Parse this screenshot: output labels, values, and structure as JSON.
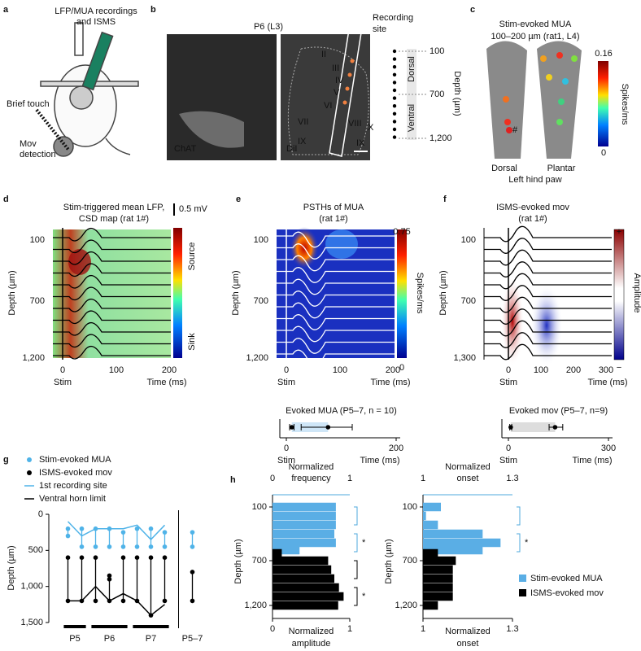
{
  "panels": {
    "a": {
      "letter": "a",
      "title": [
        "LFP/MUA recordings",
        "and ISMS"
      ],
      "touch": "Brief touch",
      "mov": [
        "Mov",
        "detection"
      ]
    },
    "b": {
      "letter": "b",
      "title": "P6 (L3)",
      "site": [
        "Recording",
        "site"
      ],
      "stain1": "ChAT",
      "stain2": "DiI",
      "laminae": [
        "II",
        "III",
        "IV",
        "V",
        "VI",
        "VII",
        "VIII",
        "IX",
        "X",
        "IX"
      ],
      "depth_ticks": [
        "100",
        "700",
        "1,200"
      ],
      "dorsal": "Dorsal",
      "ventral": "Ventral",
      "depth_label": "Depth (µm)"
    },
    "c": {
      "letter": "c",
      "title": "Stim-evoked MUA",
      "subtitle": "100–200 µm (rat1, L4)",
      "scale_max": "0.16",
      "scale_min": "0",
      "scale_label": "Spikes/ms",
      "mark": "#",
      "view1": "Dorsal",
      "view2": "Plantar",
      "caption": "Left hind paw"
    },
    "d": {
      "letter": "d",
      "title": [
        "Stim-triggered mean LFP,",
        "CSD map (rat 1#)"
      ],
      "scale_bar": "0.5 mV",
      "top": "Source",
      "bottom": "Sink",
      "ylabel": "Depth (µm)",
      "yticks": [
        "100",
        "700",
        "1,200"
      ],
      "xticks": [
        "0",
        "100",
        "200"
      ],
      "stim": "Stim",
      "xlabel": "Time (ms)"
    },
    "e": {
      "letter": "e",
      "title": [
        "PSTHs of MUA",
        "(rat 1#)"
      ],
      "scale_max": "0.75",
      "scale_min": "0",
      "scale_label": "Spikes/ms",
      "ylabel": "Depth (µm)",
      "yticks": [
        "100",
        "700",
        "1,200"
      ],
      "xticks": [
        "0",
        "100",
        "200"
      ],
      "stim": "Stim",
      "xlabel": "Time (ms)",
      "summary": {
        "title": "Evoked MUA (P5–7, n = 10)",
        "xlim": [
          0,
          200
        ],
        "xticks": [
          0,
          200
        ],
        "onset": 10,
        "onset_range": [
          6,
          14
        ],
        "peak": 76,
        "peak_range": [
          27,
          120
        ],
        "stim": "Stim",
        "xlabel": "Time (ms)"
      }
    },
    "f": {
      "letter": "f",
      "title": [
        "ISMS-evoked  mov",
        "(rat 1#)"
      ],
      "scale_max": "+",
      "scale_min": "−",
      "scale_label": "Amplitude",
      "ylabel": "Depth (µm)",
      "yticks": [
        "100",
        "700",
        "1,300"
      ],
      "xticks": [
        "0",
        "100",
        "200",
        "300"
      ],
      "stim": "Stim",
      "xlabel": "Time (ms)",
      "summary": {
        "title": "Evoked  mov  (P5–7, n=9)",
        "xlim": [
          0,
          300
        ],
        "xticks": [
          0,
          300
        ],
        "onset": 7,
        "onset_range": [
          4,
          10
        ],
        "peak": 140,
        "peak_range": [
          122,
          163
        ],
        "stim": "Stim",
        "xlabel": "Time (ms)"
      }
    },
    "g": {
      "letter": "g"
    },
    "h": {
      "letter": "h"
    }
  },
  "chart_data": [
    {
      "type": "scatter",
      "ylabel": "Depth (µm)",
      "ylim": [
        0,
        1500
      ],
      "yticks": [
        0,
        500,
        {
          "value": 1000,
          "label": "1,000"
        },
        {
          "value": 1500,
          "label": "1,500"
        }
      ],
      "xlim": [
        0.5,
        10.5
      ],
      "xticks": [
        {
          "value": 1.5,
          "label": "P5"
        },
        {
          "value": 4,
          "label": "P6"
        },
        {
          "value": 7,
          "label": "P7"
        },
        {
          "value": 10,
          "label": "P5–7"
        }
      ],
      "series": [
        {
          "name": "Stim-evoked MUA",
          "color": "#4fb3e8",
          "x": [
            1,
            1,
            2,
            2,
            3,
            3,
            4,
            4,
            5,
            5,
            6,
            6,
            7,
            7,
            8,
            8,
            10,
            10
          ],
          "values": [
            200,
            300,
            200,
            450,
            200,
            450,
            200,
            450,
            250,
            450,
            200,
            450,
            200,
            450,
            250,
            450,
            250,
            450
          ]
        },
        {
          "name": "ISMS-evoked mov",
          "color": "#000000",
          "x": [
            1,
            1,
            2,
            2,
            3,
            3,
            4,
            4,
            4,
            5,
            5,
            6,
            6,
            7,
            7,
            8,
            8,
            10,
            10
          ],
          "values": [
            600,
            1200,
            600,
            1200,
            600,
            1200,
            850,
            900,
            1200,
            600,
            1200,
            600,
            1200,
            600,
            1400,
            600,
            1200,
            800,
            1200
          ]
        },
        {
          "name": "1st recording site",
          "color": "#4fb3e8",
          "line": true,
          "x": [
            1,
            2,
            3,
            4,
            5,
            6,
            7,
            8
          ],
          "values": [
            100,
            300,
            200,
            200,
            200,
            150,
            350,
            150
          ]
        },
        {
          "name": "Ventral horn limit",
          "color": "#000000",
          "line": true,
          "x": [
            1,
            2,
            3,
            4,
            5,
            6,
            7,
            8
          ],
          "values": [
            1200,
            1200,
            1000,
            1200,
            1100,
            1200,
            1400,
            1250
          ]
        }
      ]
    },
    {
      "type": "hbar",
      "top_label": [
        "Normalized",
        "frequency"
      ],
      "bottom_label": [
        "Normalized",
        "amplitude"
      ],
      "ylabel": "Depth (µm)",
      "ylim": [
        0,
        1
      ],
      "yticks": [
        0,
        1
      ],
      "x": [
        100,
        200,
        300,
        400,
        500,
        600,
        700,
        800,
        900,
        1000,
        1100,
        1200
      ],
      "xlim": [
        0,
        1300
      ],
      "xticks": [
        100,
        700,
        {
          "value": 1200,
          "label": "1,200"
        }
      ],
      "annotations": [
        "*",
        "*"
      ],
      "series": [
        {
          "name": "Stim-evoked MUA",
          "color": "#5aaee5",
          "values": [
            0.82,
            0.82,
            0.82,
            0.8,
            0.82,
            0.35,
            null,
            null,
            null,
            null,
            null,
            null
          ]
        },
        {
          "name": "ISMS-evoked mov",
          "color": "#000000",
          "values": [
            null,
            null,
            null,
            null,
            null,
            0.12,
            0.72,
            0.76,
            0.8,
            0.86,
            0.92,
            0.85
          ]
        }
      ]
    },
    {
      "type": "hbar",
      "top_label": [
        "Normalized",
        "onset"
      ],
      "bottom_label": [
        "Normalized",
        "onset"
      ],
      "ylabel": "Depth (µm)",
      "ylim": [
        1,
        1.3
      ],
      "yticks": [
        1,
        1.3
      ],
      "legend": "right",
      "x": [
        100,
        200,
        300,
        400,
        500,
        600,
        700,
        800,
        900,
        1000,
        1100,
        1200
      ],
      "xlim": [
        0,
        1300
      ],
      "xticks": [
        100,
        700,
        {
          "value": 1200,
          "label": "1,200"
        }
      ],
      "annotations": [
        "*"
      ],
      "series": [
        {
          "name": "Stim-evoked MUA",
          "color": "#5aaee5",
          "values": [
            1.06,
            1.01,
            1.05,
            1.2,
            1.26,
            1.2,
            null,
            null,
            null,
            null,
            null,
            null
          ]
        },
        {
          "name": "ISMS-evoked mov",
          "color": "#000000",
          "values": [
            null,
            null,
            null,
            null,
            null,
            1.05,
            1.11,
            1.1,
            1.1,
            1.1,
            1.1,
            1.05
          ]
        }
      ]
    }
  ]
}
